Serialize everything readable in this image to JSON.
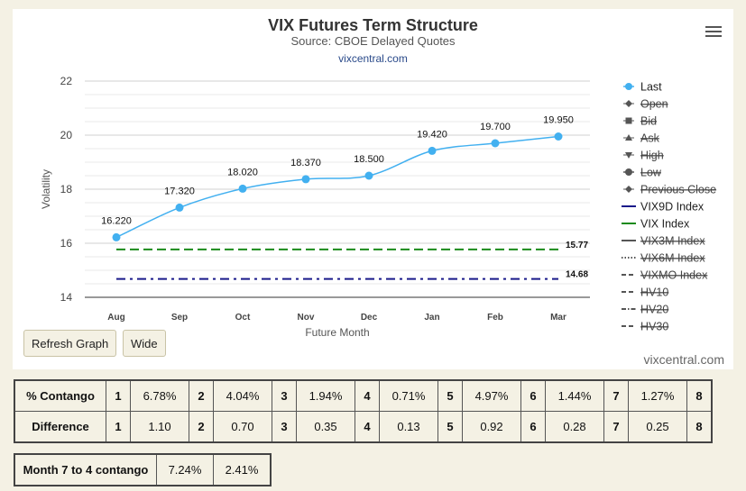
{
  "header": {
    "title": "VIX Futures Term Structure",
    "subtitle": "Source: CBOE Delayed Quotes",
    "link": "vixcentral.com"
  },
  "credit": "vixcentral.com",
  "buttons": {
    "refresh": "Refresh Graph",
    "wide": "Wide"
  },
  "chart_data": {
    "type": "line",
    "xlabel": "Future Month",
    "ylabel": "Volatility",
    "ylim": [
      14,
      22
    ],
    "yticks": [
      14,
      16,
      18,
      20,
      22
    ],
    "categories": [
      "Aug",
      "Sep",
      "Oct",
      "Nov",
      "Dec",
      "Jan",
      "Feb",
      "Mar"
    ],
    "series": [
      {
        "name": "Last",
        "values": [
          16.22,
          17.32,
          18.02,
          18.37,
          18.5,
          19.42,
          19.7,
          19.95
        ],
        "labels": [
          "16.220",
          "17.320",
          "18.020",
          "18.370",
          "18.500",
          "19.420",
          "19.700",
          "19.950"
        ],
        "color": "#42b0f0"
      },
      {
        "name": "VIX Index",
        "value": 15.77,
        "label": "15.77",
        "color": "#1a8a1a",
        "dash": "dashed"
      },
      {
        "name": "VIX9D Index",
        "value": 14.68,
        "label": "14.68",
        "color": "#1a1a8a",
        "dash": "dashdot"
      }
    ],
    "legend": {
      "position": "right",
      "items": [
        {
          "name": "Last",
          "symbol": "circle",
          "color": "#42b0f0",
          "active": true
        },
        {
          "name": "Open",
          "symbol": "diamond",
          "color": "#555",
          "active": false
        },
        {
          "name": "Bid",
          "symbol": "square",
          "color": "#555",
          "active": false
        },
        {
          "name": "Ask",
          "symbol": "triangle",
          "color": "#555",
          "active": false
        },
        {
          "name": "High",
          "symbol": "triangle-down",
          "color": "#555",
          "active": false
        },
        {
          "name": "Low",
          "symbol": "circle",
          "color": "#555",
          "active": false
        },
        {
          "name": "Previous Close",
          "symbol": "diamond",
          "color": "#555",
          "active": false
        },
        {
          "name": "VIX9D Index",
          "symbol": "line",
          "color": "#1a1a8a",
          "active": true
        },
        {
          "name": "VIX Index",
          "symbol": "line",
          "color": "#1a8a1a",
          "active": true
        },
        {
          "name": "VIX3M Index",
          "symbol": "line",
          "color": "#555",
          "active": false
        },
        {
          "name": "VIX6M Index",
          "symbol": "dotted",
          "color": "#555",
          "active": false
        },
        {
          "name": "VIXMO Index",
          "symbol": "dashed",
          "color": "#555",
          "active": false
        },
        {
          "name": "HV10",
          "symbol": "dashed",
          "color": "#555",
          "active": false
        },
        {
          "name": "HV20",
          "symbol": "dashdot",
          "color": "#555",
          "active": false
        },
        {
          "name": "HV30",
          "symbol": "dashed",
          "color": "#555",
          "active": false
        }
      ]
    }
  },
  "contango_table": {
    "rows": [
      {
        "label": "% Contango",
        "cells": [
          [
            "1",
            "6.78%"
          ],
          [
            "2",
            "4.04%"
          ],
          [
            "3",
            "1.94%"
          ],
          [
            "4",
            "0.71%"
          ],
          [
            "5",
            "4.97%"
          ],
          [
            "6",
            "1.44%"
          ],
          [
            "7",
            "1.27%"
          ],
          [
            "8"
          ]
        ]
      },
      {
        "label": "Difference",
        "cells": [
          [
            "1",
            "1.10"
          ],
          [
            "2",
            "0.70"
          ],
          [
            "3",
            "0.35"
          ],
          [
            "4",
            "0.13"
          ],
          [
            "5",
            "0.92"
          ],
          [
            "6",
            "0.28"
          ],
          [
            "7",
            "0.25"
          ],
          [
            "8"
          ]
        ]
      }
    ]
  },
  "month_table": {
    "label": "Month 7 to 4 contango",
    "values": [
      "7.24%",
      "2.41%"
    ]
  }
}
